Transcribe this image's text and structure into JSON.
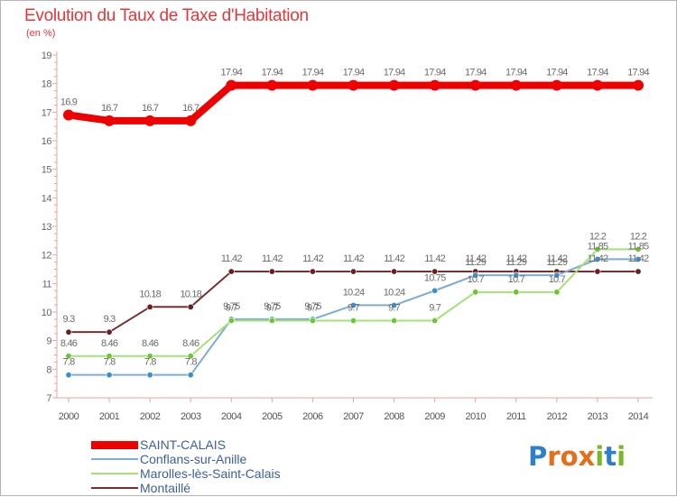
{
  "title": "Evolution du Taux de Taxe d'Habitation",
  "subtitle": "(en %)",
  "logo": {
    "text": "Proxiti",
    "letters": [
      {
        "ch": "P",
        "color": "#2e7fc9"
      },
      {
        "ch": "r",
        "color": "#e46f1b"
      },
      {
        "ch": "o",
        "color": "#e46f1b"
      },
      {
        "ch": "x",
        "color": "#e46f1b"
      },
      {
        "ch": "i",
        "color": "#7ab829"
      },
      {
        "ch": "t",
        "color": "#2e7fc9"
      },
      {
        "ch": "i",
        "color": "#7ab829"
      }
    ]
  },
  "chart_data": {
    "type": "line",
    "title": "Evolution du Taux de Taxe d'Habitation",
    "xlabel": "",
    "ylabel": "(en %)",
    "ylim": [
      7,
      19
    ],
    "y_ticks": [
      "7",
      "8",
      "9",
      "10",
      "11",
      "12",
      "13",
      "14",
      "15",
      "16",
      "17",
      "18",
      "19"
    ],
    "grid": false,
    "legend_position": "bottom-left",
    "categories": [
      "2000",
      "2001",
      "2002",
      "2003",
      "2004",
      "2005",
      "2006",
      "2007",
      "2008",
      "2009",
      "2010",
      "2011",
      "2012",
      "2013",
      "2014"
    ],
    "series": [
      {
        "name": "SAINT-CALAIS",
        "color": "#ee0000",
        "marker_color": "#ee0000",
        "values": [
          16.9,
          16.7,
          16.7,
          16.7,
          17.94,
          17.94,
          17.94,
          17.94,
          17.94,
          17.94,
          17.94,
          17.94,
          17.94,
          17.94,
          17.94
        ],
        "labels": [
          "16.9",
          "16.7",
          "16.7",
          "16.7",
          "17.94",
          "17.94",
          "17.94",
          "17.94",
          "17.94",
          "17.94",
          "17.94",
          "17.94",
          "17.94",
          "17.94",
          "17.94"
        ]
      },
      {
        "name": "Conflans-sur-Anille",
        "color": "#7eacd6",
        "marker_color": "#3a8fd1",
        "values": [
          7.8,
          7.8,
          7.8,
          7.8,
          9.75,
          9.75,
          9.75,
          10.24,
          10.24,
          10.75,
          11.29,
          11.29,
          11.29,
          11.85,
          11.85
        ],
        "labels": [
          "7.8",
          "7.8",
          "7.8",
          "7.8",
          "9.75",
          "9.75",
          "9.75",
          "10.24",
          "10.24",
          "10.75",
          "11.29",
          "11.29",
          "11.29",
          "11.85",
          "11.85"
        ]
      },
      {
        "name": "Marolles-lès-Saint-Calais",
        "color": "#a6e07a",
        "marker_color": "#6cc631",
        "values": [
          8.46,
          8.46,
          8.46,
          8.46,
          9.7,
          9.7,
          9.7,
          9.7,
          9.7,
          9.7,
          10.7,
          10.7,
          10.7,
          12.2,
          12.2
        ],
        "labels": [
          "8.46",
          "8.46",
          "8.46",
          "8.46",
          "9.7",
          "9.7",
          "9.7",
          "9.7",
          "9.7",
          "9.7",
          "10.7",
          "10.7",
          "10.7",
          "12.2",
          "12.2"
        ]
      },
      {
        "name": "Montaillé",
        "color": "#7a2e2e",
        "marker_color": "#6a1f1f",
        "values": [
          9.3,
          9.3,
          10.18,
          10.18,
          11.42,
          11.42,
          11.42,
          11.42,
          11.42,
          11.42,
          11.42,
          11.42,
          11.42,
          11.42,
          11.42
        ],
        "labels": [
          "9.3",
          "9.3",
          "10.18",
          "10.18",
          "11.42",
          "11.42",
          "11.42",
          "11.42",
          "11.42",
          "11.42",
          "11.42",
          "11.42",
          "11.42",
          "11.42",
          "11.42"
        ]
      }
    ]
  }
}
